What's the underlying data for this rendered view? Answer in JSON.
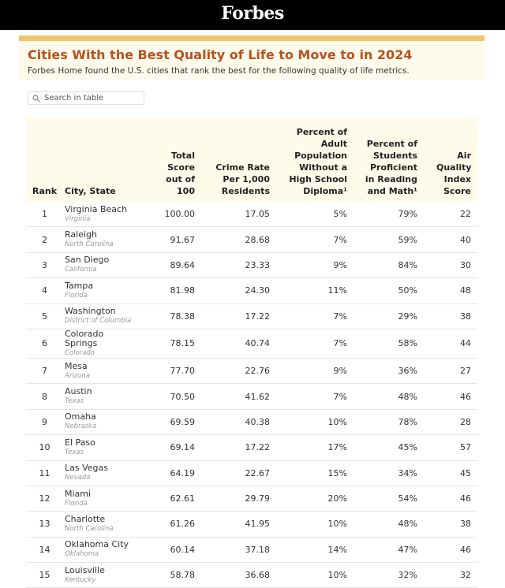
{
  "header": {
    "brand": "Forbes"
  },
  "title": "Cities With the Best Quality of Life to Move to in 2024",
  "subtitle": "Forbes Home found the U.S. cities that rank the best for the following quality of life metrics.",
  "search": {
    "placeholder": "Search in table"
  },
  "table": {
    "columns": [
      "Rank",
      "City, State",
      "Total Score out of 100",
      "Crime Rate Per 1,000 Residents",
      "Percent of Adult Population Without a High School Diploma¹",
      "Percent of Students Proficient in Reading and Math¹",
      "Air Quality Index Score"
    ],
    "rows": [
      [
        "1",
        "Virginia Beach",
        "Virginia",
        "100.00",
        "17.05",
        "5%",
        "79%",
        "22"
      ],
      [
        "2",
        "Raleigh",
        "North Carolina",
        "91.67",
        "28.68",
        "7%",
        "59%",
        "40"
      ],
      [
        "3",
        "San Diego",
        "California",
        "89.64",
        "23.33",
        "9%",
        "84%",
        "30"
      ],
      [
        "4",
        "Tampa",
        "Florida",
        "81.98",
        "24.30",
        "11%",
        "50%",
        "48"
      ],
      [
        "5",
        "Washington",
        "District of Columbia",
        "78.38",
        "17.22",
        "7%",
        "29%",
        "38"
      ],
      [
        "6",
        "Colorado Springs",
        "Colorado",
        "78.15",
        "40.74",
        "7%",
        "58%",
        "44"
      ],
      [
        "7",
        "Mesa",
        "Arizona",
        "77.70",
        "22.76",
        "9%",
        "36%",
        "27"
      ],
      [
        "8",
        "Austin",
        "Texas",
        "70.50",
        "41.62",
        "7%",
        "48%",
        "46"
      ],
      [
        "9",
        "Omaha",
        "Nebraska",
        "69.59",
        "40.38",
        "10%",
        "78%",
        "28"
      ],
      [
        "10",
        "El Paso",
        "Texas",
        "69.14",
        "17.22",
        "17%",
        "45%",
        "57"
      ],
      [
        "11",
        "Las Vegas",
        "Nevada",
        "64.19",
        "22.67",
        "15%",
        "34%",
        "45"
      ],
      [
        "12",
        "Miami",
        "Florida",
        "62.61",
        "29.79",
        "20%",
        "54%",
        "46"
      ],
      [
        "13",
        "Charlotte",
        "North Carolina",
        "61.26",
        "41.95",
        "10%",
        "48%",
        "38"
      ],
      [
        "14",
        "Oklahoma City",
        "Oklahoma",
        "60.14",
        "37.18",
        "14%",
        "47%",
        "46"
      ],
      [
        "15",
        "Louisville",
        "Kentucky",
        "58.78",
        "36.68",
        "10%",
        "32%",
        "32"
      ]
    ]
  }
}
